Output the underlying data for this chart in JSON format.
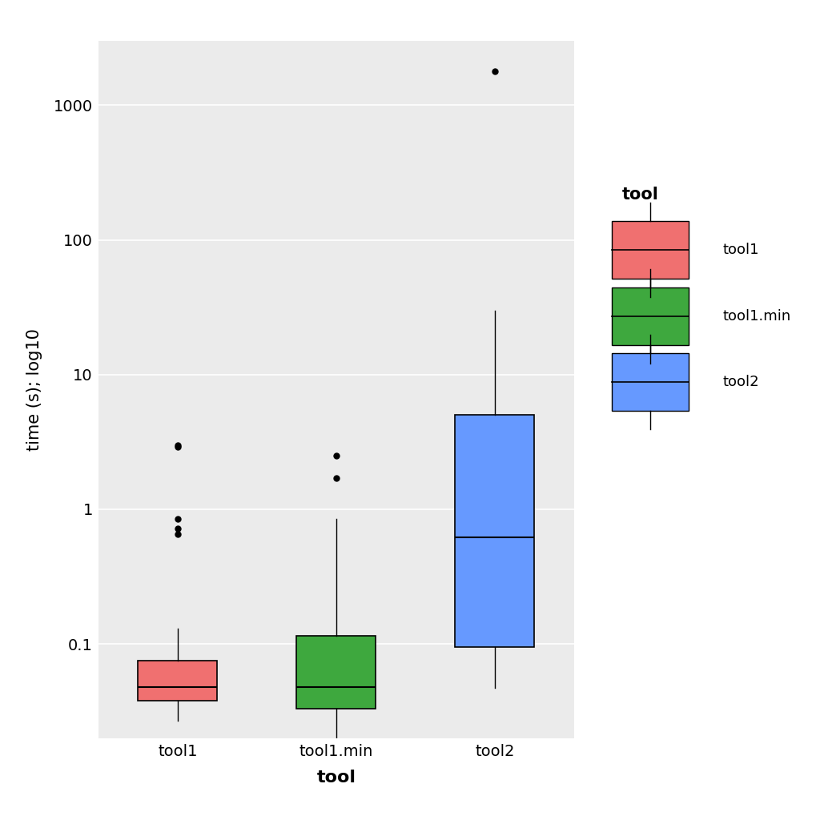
{
  "title": "",
  "xlabel": "tool",
  "ylabel": "time (s); log10",
  "plot_bg_color": "#EBEBEB",
  "fig_bg_color": "#FFFFFF",
  "grid_color": "#FFFFFF",
  "categories": [
    "tool1",
    "tool1.min",
    "tool2"
  ],
  "colors": [
    "#F07070",
    "#3EA83E",
    "#6699FF"
  ],
  "legend_title": "tool",
  "legend_items": [
    "tool1",
    "tool1.min",
    "tool2"
  ],
  "tool1": {
    "q1": 0.038,
    "median": 0.048,
    "q3": 0.075,
    "whislo": 0.027,
    "whishi": 0.13,
    "fliers": [
      0.85,
      0.72,
      0.65,
      2.9,
      3.0
    ]
  },
  "tool1min": {
    "q1": 0.033,
    "median": 0.048,
    "q3": 0.115,
    "whislo": 0.017,
    "whishi": 0.85,
    "fliers": [
      1.7,
      2.5
    ]
  },
  "tool2": {
    "q1": 0.095,
    "median": 0.62,
    "q3": 5.0,
    "whislo": 0.047,
    "whishi": 30.0,
    "fliers": [
      1800.0
    ]
  },
  "yticks": [
    0.1,
    1,
    10,
    100,
    1000
  ],
  "ytick_labels": [
    "0.1",
    "1",
    "10",
    "100",
    "1000"
  ]
}
